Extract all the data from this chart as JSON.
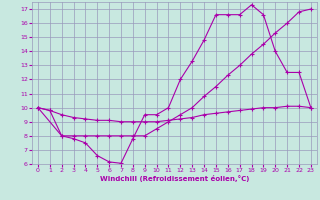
{
  "xlabel": "Windchill (Refroidissement éolien,°C)",
  "xlim": [
    -0.5,
    23.5
  ],
  "ylim": [
    6,
    17.5
  ],
  "xticks": [
    0,
    1,
    2,
    3,
    4,
    5,
    6,
    7,
    8,
    9,
    10,
    11,
    12,
    13,
    14,
    15,
    16,
    17,
    18,
    19,
    20,
    21,
    22,
    23
  ],
  "yticks": [
    6,
    7,
    8,
    9,
    10,
    11,
    12,
    13,
    14,
    15,
    16,
    17
  ],
  "background_color": "#c8e8e0",
  "grid_color": "#9999bb",
  "line_color": "#aa00aa",
  "lines": [
    {
      "x": [
        0,
        1,
        2,
        3,
        4,
        5,
        6,
        7,
        8,
        9,
        10,
        11,
        12,
        13,
        14,
        15,
        16,
        17,
        18,
        19,
        20,
        21,
        22,
        23
      ],
      "y": [
        10,
        9.8,
        8,
        7.8,
        7.5,
        6.6,
        6.15,
        6.05,
        7.8,
        9.5,
        9.5,
        10.0,
        12.0,
        13.3,
        14.8,
        16.6,
        16.6,
        16.6,
        17.3,
        16.6,
        14.0,
        12.5,
        12.5,
        10.0
      ]
    },
    {
      "x": [
        0,
        2,
        3,
        4,
        5,
        6,
        7,
        8,
        9,
        10,
        11,
        12,
        13,
        14,
        15,
        16,
        17,
        18,
        19,
        20,
        21,
        22,
        23
      ],
      "y": [
        10,
        8.0,
        8.0,
        8.0,
        8.0,
        8.0,
        8.0,
        8.0,
        8.0,
        8.5,
        9.0,
        9.5,
        10.0,
        10.8,
        11.5,
        12.3,
        13.0,
        13.8,
        14.5,
        15.3,
        16.0,
        16.8,
        17.0
      ]
    },
    {
      "x": [
        0,
        1,
        2,
        3,
        4,
        5,
        6,
        7,
        8,
        9,
        10,
        11,
        12,
        13,
        14,
        15,
        16,
        17,
        18,
        19,
        20,
        21,
        22,
        23
      ],
      "y": [
        10,
        9.8,
        9.5,
        9.3,
        9.2,
        9.1,
        9.1,
        9.0,
        9.0,
        9.0,
        9.0,
        9.1,
        9.2,
        9.3,
        9.5,
        9.6,
        9.7,
        9.8,
        9.9,
        10.0,
        10.0,
        10.1,
        10.1,
        10.0
      ]
    }
  ]
}
